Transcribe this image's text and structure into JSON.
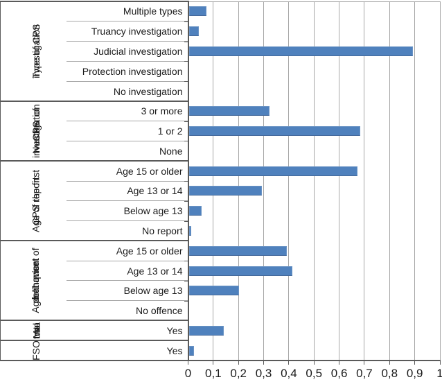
{
  "chart_data": {
    "type": "bar",
    "orientation": "horizontal",
    "title": "",
    "xlabel": "",
    "ylabel": "",
    "xlim": [
      0,
      1
    ],
    "grid": "vertical",
    "legend": "none",
    "x_tick_labels": [
      "0",
      "0,1",
      "0,2",
      "0,3",
      "0,4",
      "0,5",
      "0,6",
      "0,7",
      "0,8",
      "0,9",
      "1"
    ],
    "x_tick_values": [
      0,
      0.1,
      0.2,
      0.3,
      0.4,
      0.5,
      0.6,
      0.7,
      0.8,
      0.9,
      1
    ],
    "colors": {
      "bar": "#4f81bd",
      "gridline": "#a6a6a6",
      "axis": "#5a5a5a",
      "text": "#1a1a1a"
    },
    "groups": [
      {
        "label": "Type of CPS investigation",
        "label_lines": [
          "Type of CPS",
          "investigation"
        ],
        "categories": [
          "Multiple types",
          "Truancy investigation",
          "Judicial investigation",
          "Protection investigation",
          "No investigation"
        ],
        "values": [
          0.07,
          0.04,
          0.89,
          0,
          0
        ]
      },
      {
        "label": "Number of CPS investigations",
        "label_lines": [
          "Number of",
          "CPS",
          "investigation",
          "s"
        ],
        "categories": [
          "3 or more",
          "1 or 2",
          "None"
        ],
        "values": [
          0.32,
          0.68,
          0
        ]
      },
      {
        "label": "Age of the first CPS report",
        "label_lines": [
          "Age of the first",
          "CPS report"
        ],
        "categories": [
          "Age 15 or older",
          "Age 13 or 14",
          "Below age 13",
          "No report"
        ],
        "values": [
          0.67,
          0.29,
          0.05,
          0.01
        ]
      },
      {
        "label": "Age at onset of delinquent behavior",
        "label_lines": [
          "Age at onset of",
          "delinquent",
          "behavior"
        ],
        "categories": [
          "Age 15 or older",
          "Age 13 or 14",
          "Below age 13",
          "No offence"
        ],
        "values": [
          0.39,
          0.41,
          0.2,
          0
        ]
      },
      {
        "label": "Maltreatment",
        "label_lines": [
          "Mal",
          "trea",
          "tme",
          "nt"
        ],
        "categories": [
          "Yes"
        ],
        "values": [
          0.14
        ]
      },
      {
        "label": "FSO",
        "label_lines": [
          "FSO"
        ],
        "categories": [
          "Yes"
        ],
        "values": [
          0.02
        ]
      }
    ]
  }
}
